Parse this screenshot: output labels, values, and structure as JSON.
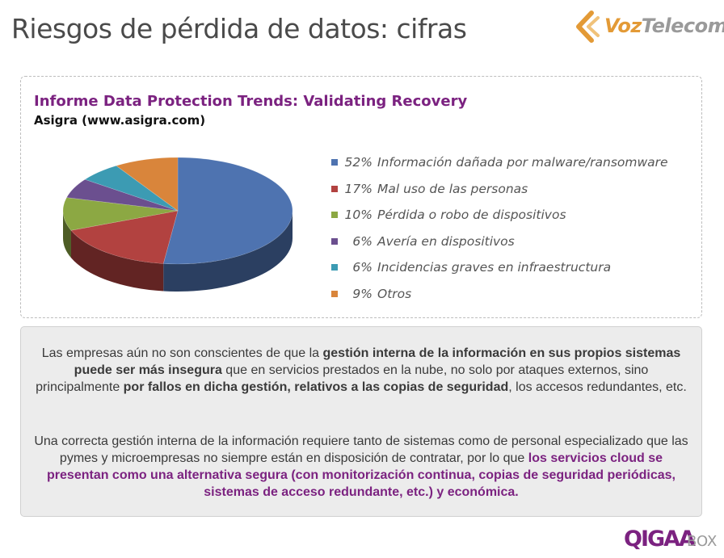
{
  "slide": {
    "title": "Riesgos de pérdida de datos: cifras"
  },
  "logo": {
    "voz": "Voz",
    "telecom": "Telecom",
    "mark_color": "#e39a36"
  },
  "chart_data": {
    "type": "pie",
    "title": "Informe Data Protection Trends: Validating Recovery",
    "subtitle": "Asigra (www.asigra.com)",
    "legend_position": "right",
    "slices": [
      {
        "label": "Información dañada por malware/ransomware",
        "pct_text": "52%",
        "value": 52,
        "color": "#4e73b0"
      },
      {
        "label": "Mal uso de las personas",
        "pct_text": "17%",
        "value": 17,
        "color": "#b24240"
      },
      {
        "label": "Pérdida o robo de dispositivos",
        "pct_text": "10%",
        "value": 10,
        "color": "#8ca843"
      },
      {
        "label": "Avería en dispositivos",
        "pct_text": "6%",
        "value": 6,
        "color": "#6b4f8f"
      },
      {
        "label": "Incidencias graves en infraestructura",
        "pct_text": "6%",
        "value": 6,
        "color": "#3c9bb3"
      },
      {
        "label": "Otros",
        "pct_text": "9%",
        "value": 9,
        "color": "#d9853b"
      }
    ]
  },
  "body": {
    "p1": [
      {
        "t": "Las empresas aún no son conscientes de que la ",
        "s": "n"
      },
      {
        "t": "gestión interna de la información en sus propios sistemas puede ser más insegura",
        "s": "b"
      },
      {
        "t": " que en servicios prestados en la nube, no solo por ataques externos, sino principalmente ",
        "s": "n"
      },
      {
        "t": "por fallos en dicha gestión, relativos a las copias de seguridad",
        "s": "b"
      },
      {
        "t": ", los accesos redundantes, etc.",
        "s": "n"
      }
    ],
    "p2": [
      {
        "t": "Una correcta gestión interna de la información requiere tanto de sistemas como de personal especializado que las pymes y microempresas no siempre están en disposición de contratar, por lo que ",
        "s": "n"
      },
      {
        "t": "los servicios cloud se presentan como una alternativa segura (con monitorización continua, copias de seguridad periódicas, sistemas de acceso redundante, etc.) y económica.",
        "s": "h"
      }
    ]
  },
  "footer_brand": {
    "name": "QIGAA",
    "suffix": "BOX"
  }
}
